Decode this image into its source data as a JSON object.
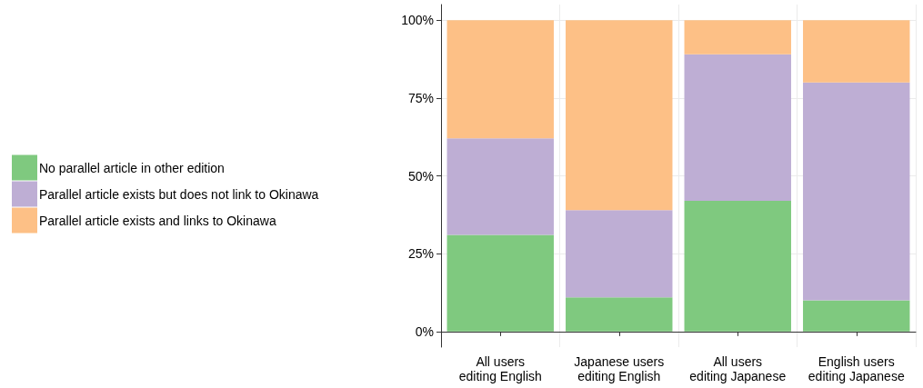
{
  "chart_data": {
    "type": "bar",
    "stacked": true,
    "categories": [
      "All users\nediting English",
      "Japanese users\nediting English",
      "All users\nediting Japanese",
      "English users\nediting Japanese"
    ],
    "series": [
      {
        "name": "No parallel article in other edition",
        "color": "#7fc97f",
        "values": [
          31,
          11,
          42,
          10
        ]
      },
      {
        "name": "Parallel article exists but does not link to Okinawa",
        "color": "#beaed4",
        "values": [
          31,
          28,
          47,
          70
        ]
      },
      {
        "name": "Parallel article exists and links to Okinawa",
        "color": "#fdc086",
        "values": [
          38,
          61,
          11,
          20
        ]
      }
    ],
    "ylim": [
      -5,
      105
    ],
    "yticks": [
      {
        "value": 0,
        "label": "0%"
      },
      {
        "value": 25,
        "label": "25%"
      },
      {
        "value": 50,
        "label": "50%"
      },
      {
        "value": 75,
        "label": "75%"
      },
      {
        "value": 100,
        "label": "100%"
      }
    ],
    "grid": true,
    "legend": "left"
  }
}
